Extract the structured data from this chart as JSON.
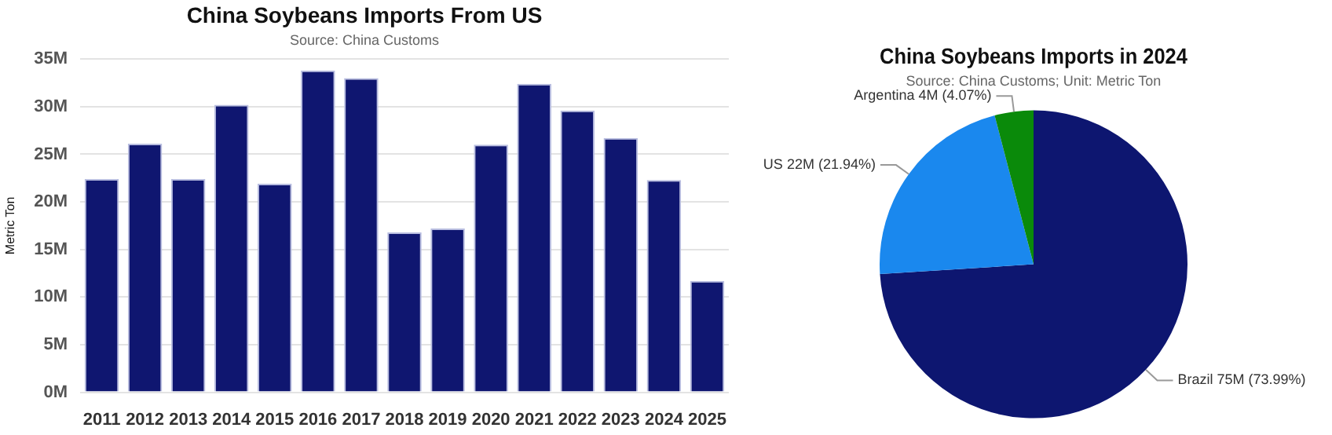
{
  "chart_data": [
    {
      "type": "bar",
      "title": "China Soybeans Imports From US",
      "subtitle": "Source: China Customs",
      "ylabel": "Metric Ton",
      "categories": [
        "2011",
        "2012",
        "2013",
        "2014",
        "2015",
        "2016",
        "2017",
        "2018",
        "2019",
        "2020",
        "2021",
        "2022",
        "2023",
        "2024",
        "2025"
      ],
      "values": [
        22.4,
        26.1,
        22.4,
        30.2,
        21.9,
        33.8,
        33.0,
        16.8,
        17.2,
        26.0,
        32.4,
        29.6,
        26.7,
        22.3,
        11.7
      ],
      "color": "#0f1670",
      "ylim": [
        0,
        35
      ],
      "yticks": [
        {
          "value": 0,
          "label": "0M"
        },
        {
          "value": 5,
          "label": "5M"
        },
        {
          "value": 10,
          "label": "10M"
        },
        {
          "value": 15,
          "label": "15M"
        },
        {
          "value": 20,
          "label": "20M"
        },
        {
          "value": 25,
          "label": "25M"
        },
        {
          "value": 30,
          "label": "30M"
        },
        {
          "value": 35,
          "label": "35M"
        }
      ],
      "grid": "y",
      "legend": false
    },
    {
      "type": "pie",
      "title": "China Soybeans Imports in 2024",
      "subtitle": "Source: China Customs; Unit: Metric Ton",
      "categories": [
        "Brazil",
        "US",
        "Argentina"
      ],
      "values": [
        73.99,
        21.94,
        4.07
      ],
      "value_labels": [
        "75M (73.99%)",
        "22M (21.94%)",
        "4M (4.07%)"
      ],
      "colors": [
        "#0d1670",
        "#1a88ee",
        "#0a8a0a"
      ],
      "legend": false
    }
  ]
}
